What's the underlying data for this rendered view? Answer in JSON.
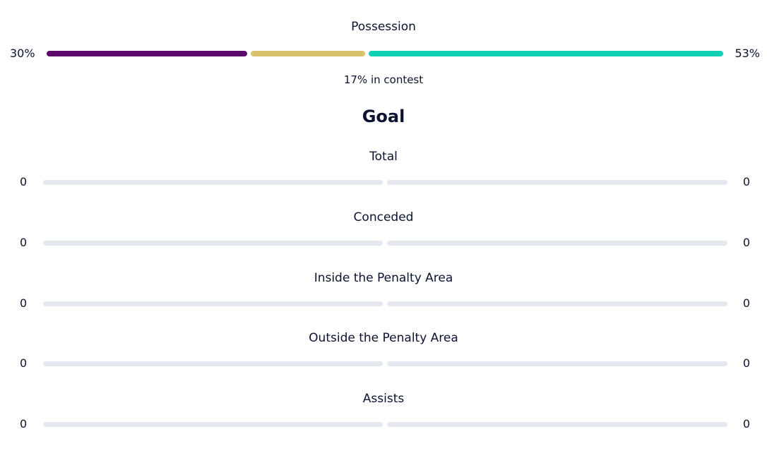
{
  "possession": {
    "title": "Possession",
    "home_value": "30%",
    "away_value": "53%",
    "home_pct": 30,
    "contest_pct": 17,
    "away_pct": 53,
    "contest_label": "17% in contest",
    "colors": {
      "home": "#5b0a6b",
      "contest": "#d9c06a",
      "away": "#0fcfb5"
    }
  },
  "goal_section": {
    "heading": "Goal",
    "stats": [
      {
        "label": "Total",
        "home": "0",
        "away": "0",
        "home_num": 0,
        "away_num": 0
      },
      {
        "label": "Conceded",
        "home": "0",
        "away": "0",
        "home_num": 0,
        "away_num": 0
      },
      {
        "label": "Inside the Penalty Area",
        "home": "0",
        "away": "0",
        "home_num": 0,
        "away_num": 0
      },
      {
        "label": "Outside the Penalty Area",
        "home": "0",
        "away": "0",
        "home_num": 0,
        "away_num": 0
      },
      {
        "label": "Assists",
        "home": "0",
        "away": "0",
        "home_num": 0,
        "away_num": 0
      }
    ]
  },
  "colors": {
    "text": "#0b1330",
    "track": "#e5e8ef"
  }
}
